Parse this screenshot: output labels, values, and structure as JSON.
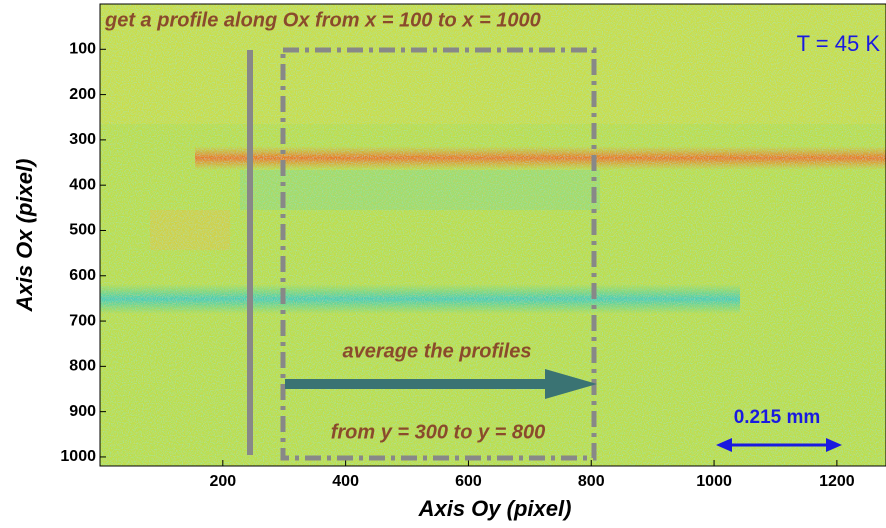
{
  "chart_data": {
    "type": "image",
    "xlabel": "Axis Oy (pixel)",
    "ylabel": "Axis Ox (pixel)",
    "xlim": [
      0,
      1280
    ],
    "ylim": [
      0,
      1020
    ],
    "y_inverted": true,
    "xticks": [
      200,
      400,
      600,
      800,
      1000,
      1200
    ],
    "yticks": [
      100,
      200,
      300,
      400,
      500,
      600,
      700,
      800,
      900,
      1000
    ],
    "annotations": {
      "title": "get a profile along Ox from x = 100 to x = 1000",
      "temperature": "T = 45 K",
      "average": "average the profiles",
      "range": "from y = 300 to y = 800",
      "scale": "0.215 mm"
    }
  }
}
